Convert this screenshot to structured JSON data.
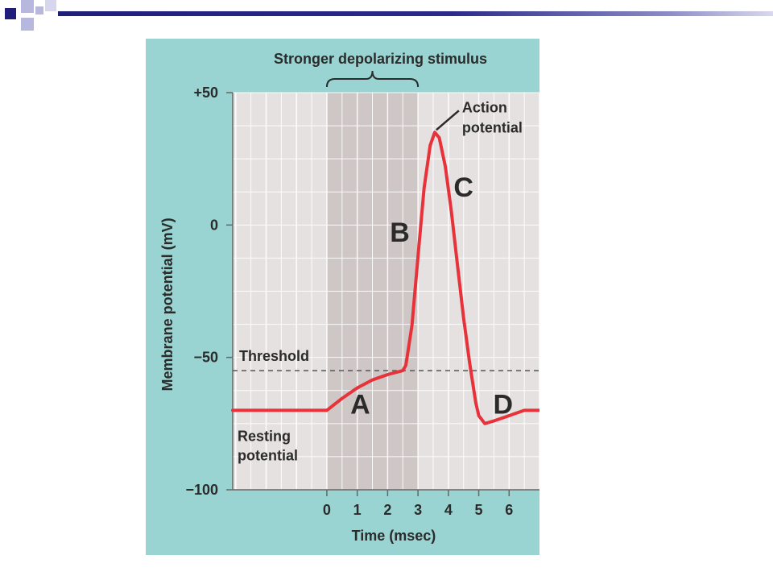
{
  "colors": {
    "panel_bg": "#99d4d2",
    "plot_bg": "#e6e1e1",
    "stimulus_band": "#cfc6c6",
    "grid_line": "#ffffff",
    "trace": "#e8323a",
    "threshold_line": "#555555",
    "text": "#2b2b2b",
    "header_dark": "#1f1f7a",
    "header_light": "#b8b8de"
  },
  "chart_data": {
    "type": "line",
    "title": "",
    "xlabel": "Time (msec)",
    "ylabel": "Membrane potential (mV)",
    "xlim": [
      -3.1,
      7
    ],
    "ylim": [
      -100,
      50
    ],
    "x_ticks": [
      0,
      1,
      2,
      3,
      4,
      5,
      6
    ],
    "x_tick_labels": [
      "0",
      "1",
      "2",
      "3",
      "4",
      "5",
      "6"
    ],
    "y_ticks": [
      50,
      0,
      -50,
      -100
    ],
    "y_tick_labels": [
      "+50",
      "0",
      "−50",
      "−100"
    ],
    "grid": true,
    "stimulus": {
      "label": "Stronger depolarizing stimulus",
      "x_start": 0,
      "x_end": 3
    },
    "threshold": {
      "label": "Threshold",
      "y": -55
    },
    "series": [
      {
        "x": [
          -3.1,
          0,
          0.5,
          1,
          1.5,
          2,
          2.5,
          2.6,
          2.8,
          3.0,
          3.2,
          3.4,
          3.55,
          3.7,
          3.9,
          4.1,
          4.3,
          4.5,
          4.7,
          4.9,
          5.0,
          5.2,
          5.5,
          6.0,
          6.5,
          7.0
        ],
        "y": [
          -70,
          -70,
          -65.5,
          -61.5,
          -58.5,
          -56.5,
          -55,
          -53,
          -38,
          -12,
          14,
          30,
          35,
          33,
          22,
          5,
          -15,
          -35,
          -52,
          -67,
          -72,
          -75,
          -74,
          -72,
          -70,
          -70
        ]
      }
    ],
    "annotations": [
      {
        "text": "Action potential",
        "x": 3.55,
        "y": 35
      },
      {
        "text": "Resting potential",
        "x": -2.6,
        "y": -78
      },
      {
        "text": "A",
        "x": 1.1,
        "y": -67
      },
      {
        "text": "B",
        "x": 2.4,
        "y": -2
      },
      {
        "text": "C",
        "x": 4.5,
        "y": 15
      },
      {
        "text": "D",
        "x": 5.8,
        "y": -67
      }
    ]
  }
}
